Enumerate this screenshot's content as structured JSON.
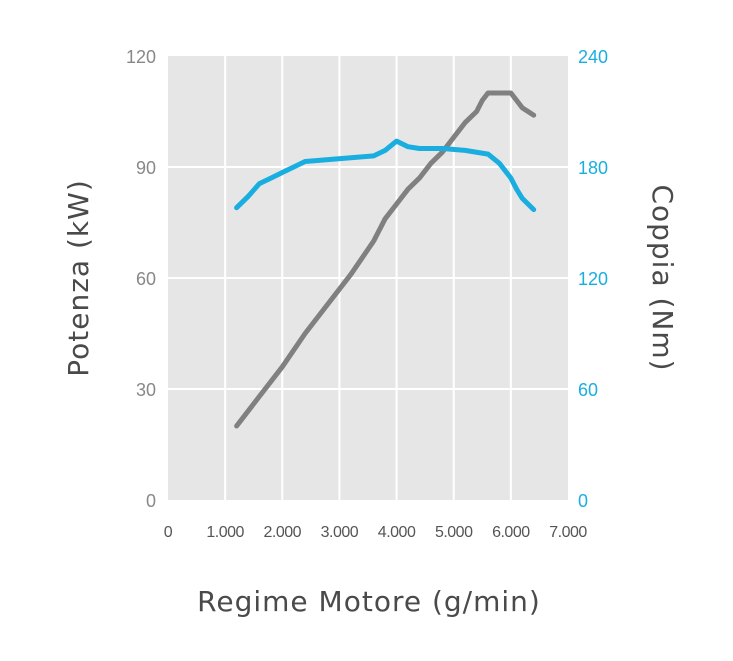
{
  "chart_data": {
    "type": "line",
    "title": "",
    "xlabel": "Regime Motore (g/min)",
    "ylabel_left": "Potenza (kW)",
    "ylabel_right": "Coppia (Nm)",
    "xlim": [
      0,
      7000
    ],
    "ylim_left": [
      0,
      120
    ],
    "ylim_right": [
      0,
      240
    ],
    "x_ticks": [
      0,
      1000,
      2000,
      3000,
      4000,
      5000,
      6000,
      7000
    ],
    "x_tick_labels": [
      "0",
      "1.000",
      "2.000",
      "3.000",
      "4.000",
      "5.000",
      "6.000",
      "7.000"
    ],
    "y_left_ticks": [
      0,
      30,
      60,
      90,
      120
    ],
    "y_left_tick_labels": [
      "0",
      "30",
      "60",
      "90",
      "120"
    ],
    "y_right_ticks": [
      0,
      60,
      120,
      180,
      240
    ],
    "y_right_tick_labels": [
      "0",
      "60",
      "120",
      "180",
      "240"
    ],
    "grid": true,
    "colors": {
      "plot_background": "#e6e6e6",
      "grid": "#ffffff",
      "power": "#808080",
      "torque": "#1aaee0",
      "left_ticks": "#888888",
      "right_ticks": "#1aaee0",
      "axis_titles": "#4a4a4a"
    },
    "series": [
      {
        "key": "power",
        "axis": "left",
        "x": [
          1200,
          1600,
          2000,
          2400,
          2800,
          3200,
          3600,
          3800,
          4000,
          4200,
          4400,
          4600,
          4800,
          5000,
          5200,
          5400,
          5500,
          5600,
          5800,
          6000,
          6100,
          6200,
          6300,
          6400
        ],
        "values": [
          20,
          28,
          36,
          45,
          53,
          61,
          70,
          76,
          80,
          84,
          87,
          91,
          94,
          98,
          102,
          105,
          108,
          110,
          110,
          110,
          108,
          106,
          105,
          104
        ]
      },
      {
        "key": "torque",
        "axis": "right",
        "x": [
          1200,
          1400,
          1600,
          1800,
          2000,
          2200,
          2400,
          2800,
          3200,
          3600,
          3800,
          4000,
          4200,
          4400,
          4800,
          5200,
          5600,
          5800,
          6000,
          6100,
          6200,
          6300,
          6400
        ],
        "values": [
          158,
          164,
          171,
          174,
          177,
          180,
          183,
          184,
          185,
          186,
          189,
          194,
          191,
          190,
          190,
          189,
          187,
          182,
          174,
          168,
          163,
          160,
          157
        ]
      }
    ]
  }
}
